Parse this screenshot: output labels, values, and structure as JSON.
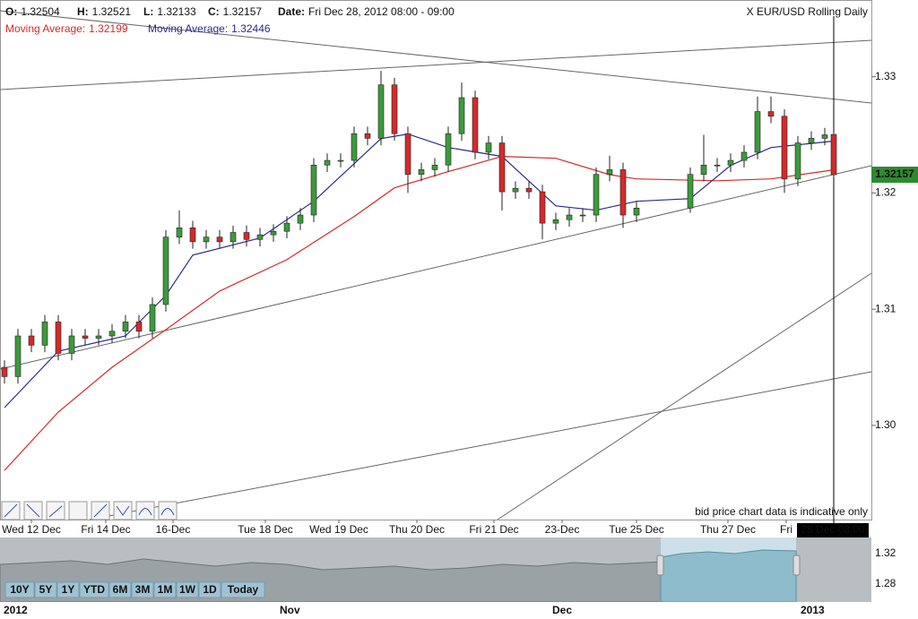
{
  "chart_data": {
    "type": "candlestick",
    "title": "X EUR/USD Rolling Daily",
    "header": [
      {
        "label": "O:",
        "value": 1.32504
      },
      {
        "label": "H:",
        "value": 1.32521
      },
      {
        "label": "L:",
        "value": 1.32133
      },
      {
        "label": "C:",
        "value": 1.32157
      },
      {
        "label": "Date:",
        "value": "Fri Dec 28, 2012 08:00 - 09:00"
      }
    ],
    "up_color": "#3c9a3c",
    "down_color": "#d42a2a",
    "x": [
      5,
      20,
      35,
      50,
      65,
      80,
      95,
      110,
      125,
      140,
      155,
      170,
      185,
      200,
      215,
      230,
      245,
      260,
      275,
      290,
      305,
      320,
      335,
      350,
      365,
      380,
      395,
      410,
      425,
      440,
      455,
      470,
      485,
      500,
      515,
      530,
      545,
      560,
      575,
      590,
      605,
      620,
      635,
      650,
      665,
      680,
      695,
      710,
      770,
      785,
      800,
      815,
      830,
      845,
      860,
      875,
      890,
      905,
      920,
      930
    ],
    "ohlc": [
      [
        1.305,
        1.3056,
        1.3036,
        1.3042
      ],
      [
        1.3042,
        1.3083,
        1.3036,
        1.3077
      ],
      [
        1.3077,
        1.3083,
        1.3063,
        1.3069
      ],
      [
        1.3069,
        1.3095,
        1.3063,
        1.3089
      ],
      [
        1.3089,
        1.3095,
        1.3056,
        1.3062
      ],
      [
        1.3062,
        1.3083,
        1.3056,
        1.3077
      ],
      [
        1.3077,
        1.3083,
        1.3069,
        1.3075
      ],
      [
        1.3075,
        1.3083,
        1.3069,
        1.3077
      ],
      [
        1.3077,
        1.3087,
        1.3071,
        1.3081
      ],
      [
        1.3081,
        1.3095,
        1.3075,
        1.3089
      ],
      [
        1.3089,
        1.3095,
        1.3075,
        1.3081
      ],
      [
        1.3081,
        1.311,
        1.3075,
        1.3104
      ],
      [
        1.3104,
        1.3168,
        1.3098,
        1.3162
      ],
      [
        1.3162,
        1.3185,
        1.3156,
        1.317
      ],
      [
        1.317,
        1.3176,
        1.3152,
        1.3158
      ],
      [
        1.3158,
        1.3168,
        1.3152,
        1.3162
      ],
      [
        1.3162,
        1.3168,
        1.3152,
        1.3158
      ],
      [
        1.3158,
        1.3172,
        1.3152,
        1.3166
      ],
      [
        1.3166,
        1.3172,
        1.3154,
        1.316
      ],
      [
        1.316,
        1.317,
        1.3154,
        1.3164
      ],
      [
        1.3164,
        1.3173,
        1.3158,
        1.3167
      ],
      [
        1.3167,
        1.318,
        1.3161,
        1.3174
      ],
      [
        1.3174,
        1.3187,
        1.3168,
        1.3181
      ],
      [
        1.3181,
        1.323,
        1.3175,
        1.3224
      ],
      [
        1.3224,
        1.3234,
        1.3218,
        1.3228
      ],
      [
        1.3228,
        1.3234,
        1.3222,
        1.3228
      ],
      [
        1.3228,
        1.3257,
        1.3222,
        1.3251
      ],
      [
        1.3251,
        1.3257,
        1.3241,
        1.3247
      ],
      [
        1.3247,
        1.3305,
        1.3241,
        1.3293
      ],
      [
        1.3293,
        1.3299,
        1.3245,
        1.3251
      ],
      [
        1.3251,
        1.3257,
        1.32,
        1.3216
      ],
      [
        1.3216,
        1.3226,
        1.321,
        1.322
      ],
      [
        1.322,
        1.323,
        1.3214,
        1.3224
      ],
      [
        1.3224,
        1.3257,
        1.3218,
        1.3251
      ],
      [
        1.3251,
        1.3295,
        1.3245,
        1.3282
      ],
      [
        1.3282,
        1.3288,
        1.3229,
        1.3235
      ],
      [
        1.3235,
        1.3249,
        1.3229,
        1.3243
      ],
      [
        1.3243,
        1.3249,
        1.3185,
        1.3201
      ],
      [
        1.3201,
        1.321,
        1.3195,
        1.3204
      ],
      [
        1.3204,
        1.321,
        1.3195,
        1.3201
      ],
      [
        1.3201,
        1.3207,
        1.316,
        1.3174
      ],
      [
        1.3174,
        1.3183,
        1.3168,
        1.3177
      ],
      [
        1.3177,
        1.3187,
        1.3171,
        1.3181
      ],
      [
        1.3181,
        1.3187,
        1.3175,
        1.3181
      ],
      [
        1.3181,
        1.3222,
        1.3175,
        1.3216
      ],
      [
        1.3216,
        1.3232,
        1.321,
        1.322
      ],
      [
        1.322,
        1.3226,
        1.317,
        1.3181
      ],
      [
        1.3181,
        1.3193,
        1.3175,
        1.3187
      ],
      [
        1.3187,
        1.3222,
        1.3183,
        1.3216
      ],
      [
        1.3216,
        1.325,
        1.321,
        1.3224
      ],
      [
        1.3224,
        1.323,
        1.3218,
        1.3224
      ],
      [
        1.3224,
        1.3234,
        1.3218,
        1.3228
      ],
      [
        1.3228,
        1.3241,
        1.3222,
        1.3235
      ],
      [
        1.3235,
        1.3283,
        1.3229,
        1.327
      ],
      [
        1.327,
        1.3283,
        1.326,
        1.3266
      ],
      [
        1.3266,
        1.3272,
        1.32,
        1.3212
      ],
      [
        1.3212,
        1.3249,
        1.3206,
        1.3243
      ],
      [
        1.3243,
        1.3253,
        1.3237,
        1.3247
      ],
      [
        1.3247,
        1.3256,
        1.3241,
        1.325
      ],
      [
        1.32504,
        1.32521,
        1.32133,
        1.32157
      ]
    ],
    "series": [
      {
        "name": "Moving Average:",
        "legend_value": 1.32199,
        "color": "#d42a2a",
        "x": [
          5,
          65,
          125,
          185,
          245,
          320,
          395,
          440,
          500,
          560,
          620,
          680,
          710,
          800,
          860,
          930
        ],
        "values": [
          1.29613,
          1.30115,
          1.305,
          1.30824,
          1.31156,
          1.31426,
          1.31797,
          1.32044,
          1.32183,
          1.32314,
          1.32298,
          1.32157,
          1.32121,
          1.32105,
          1.32121,
          1.32199
        ]
      },
      {
        "name": "Moving Average:",
        "legend_value": 1.32446,
        "color": "#2a2a8c",
        "x": [
          5,
          65,
          140,
          185,
          215,
          290,
          350,
          425,
          455,
          500,
          560,
          620,
          665,
          710,
          770,
          815,
          860,
          930
        ],
        "values": [
          1.30153,
          1.30639,
          1.3077,
          1.31118,
          1.31465,
          1.31612,
          1.31928,
          1.32468,
          1.32507,
          1.32391,
          1.32314,
          1.31889,
          1.31851,
          1.31928,
          1.31951,
          1.32237,
          1.32391,
          1.32446
        ]
      }
    ],
    "current_price": 1.32157,
    "crosshair_label": "28 Dec 08:00",
    "note": "bid price chart data is indicative only",
    "xlim": [
      0,
      972
    ],
    "xticks": [
      {
        "value": 35,
        "label": "Wed 12 Dec"
      },
      {
        "value": 118,
        "label": "Fri 14 Dec"
      },
      {
        "value": 193,
        "label": "16-Dec"
      },
      {
        "value": 296,
        "label": "Tue 18 Dec"
      },
      {
        "value": 378,
        "label": "Wed 19 Dec"
      },
      {
        "value": 465,
        "label": "Thu 20 Dec"
      },
      {
        "value": 551,
        "label": "Fri 21 Dec"
      },
      {
        "value": 627,
        "label": "23-Dec"
      },
      {
        "value": 710,
        "label": "Tue 25 Dec"
      },
      {
        "value": 812,
        "label": "Thu 27 Dec"
      },
      {
        "value": 877,
        "label": "Fri"
      }
    ],
    "ylim": [
      1.2919,
      1.3366
    ],
    "yticks": [
      {
        "value": 1.3,
        "label": "1.30"
      },
      1.31,
      1.32,
      1.33
    ]
  },
  "navigator": {
    "labels": [
      "2012",
      "Nov",
      "Dec",
      "2013"
    ],
    "yticks": [
      1.32,
      1.28
    ],
    "buttons": [
      "10Y",
      "5Y",
      "1Y",
      "YTD",
      "6M",
      "3M",
      "1M",
      "1W",
      "1D",
      "Today"
    ]
  }
}
